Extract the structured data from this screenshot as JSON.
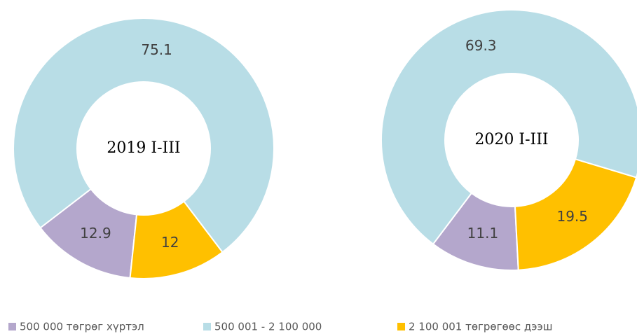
{
  "chart_data": [
    {
      "type": "donut",
      "title": "2019 I-III",
      "values": [
        12.9,
        75.1,
        12.0
      ]
    },
    {
      "type": "donut",
      "title": "2020 I-III",
      "values": [
        11.1,
        69.3,
        19.5
      ]
    }
  ],
  "legend": {
    "labels": [
      "500 000 төгрөг хүртэл",
      "500 001 - 2 100 000",
      "2 100 001 төгрөгөөс дээш"
    ],
    "colors": [
      "#b4a7cc",
      "#b8dde6",
      "#ffc000"
    ]
  }
}
